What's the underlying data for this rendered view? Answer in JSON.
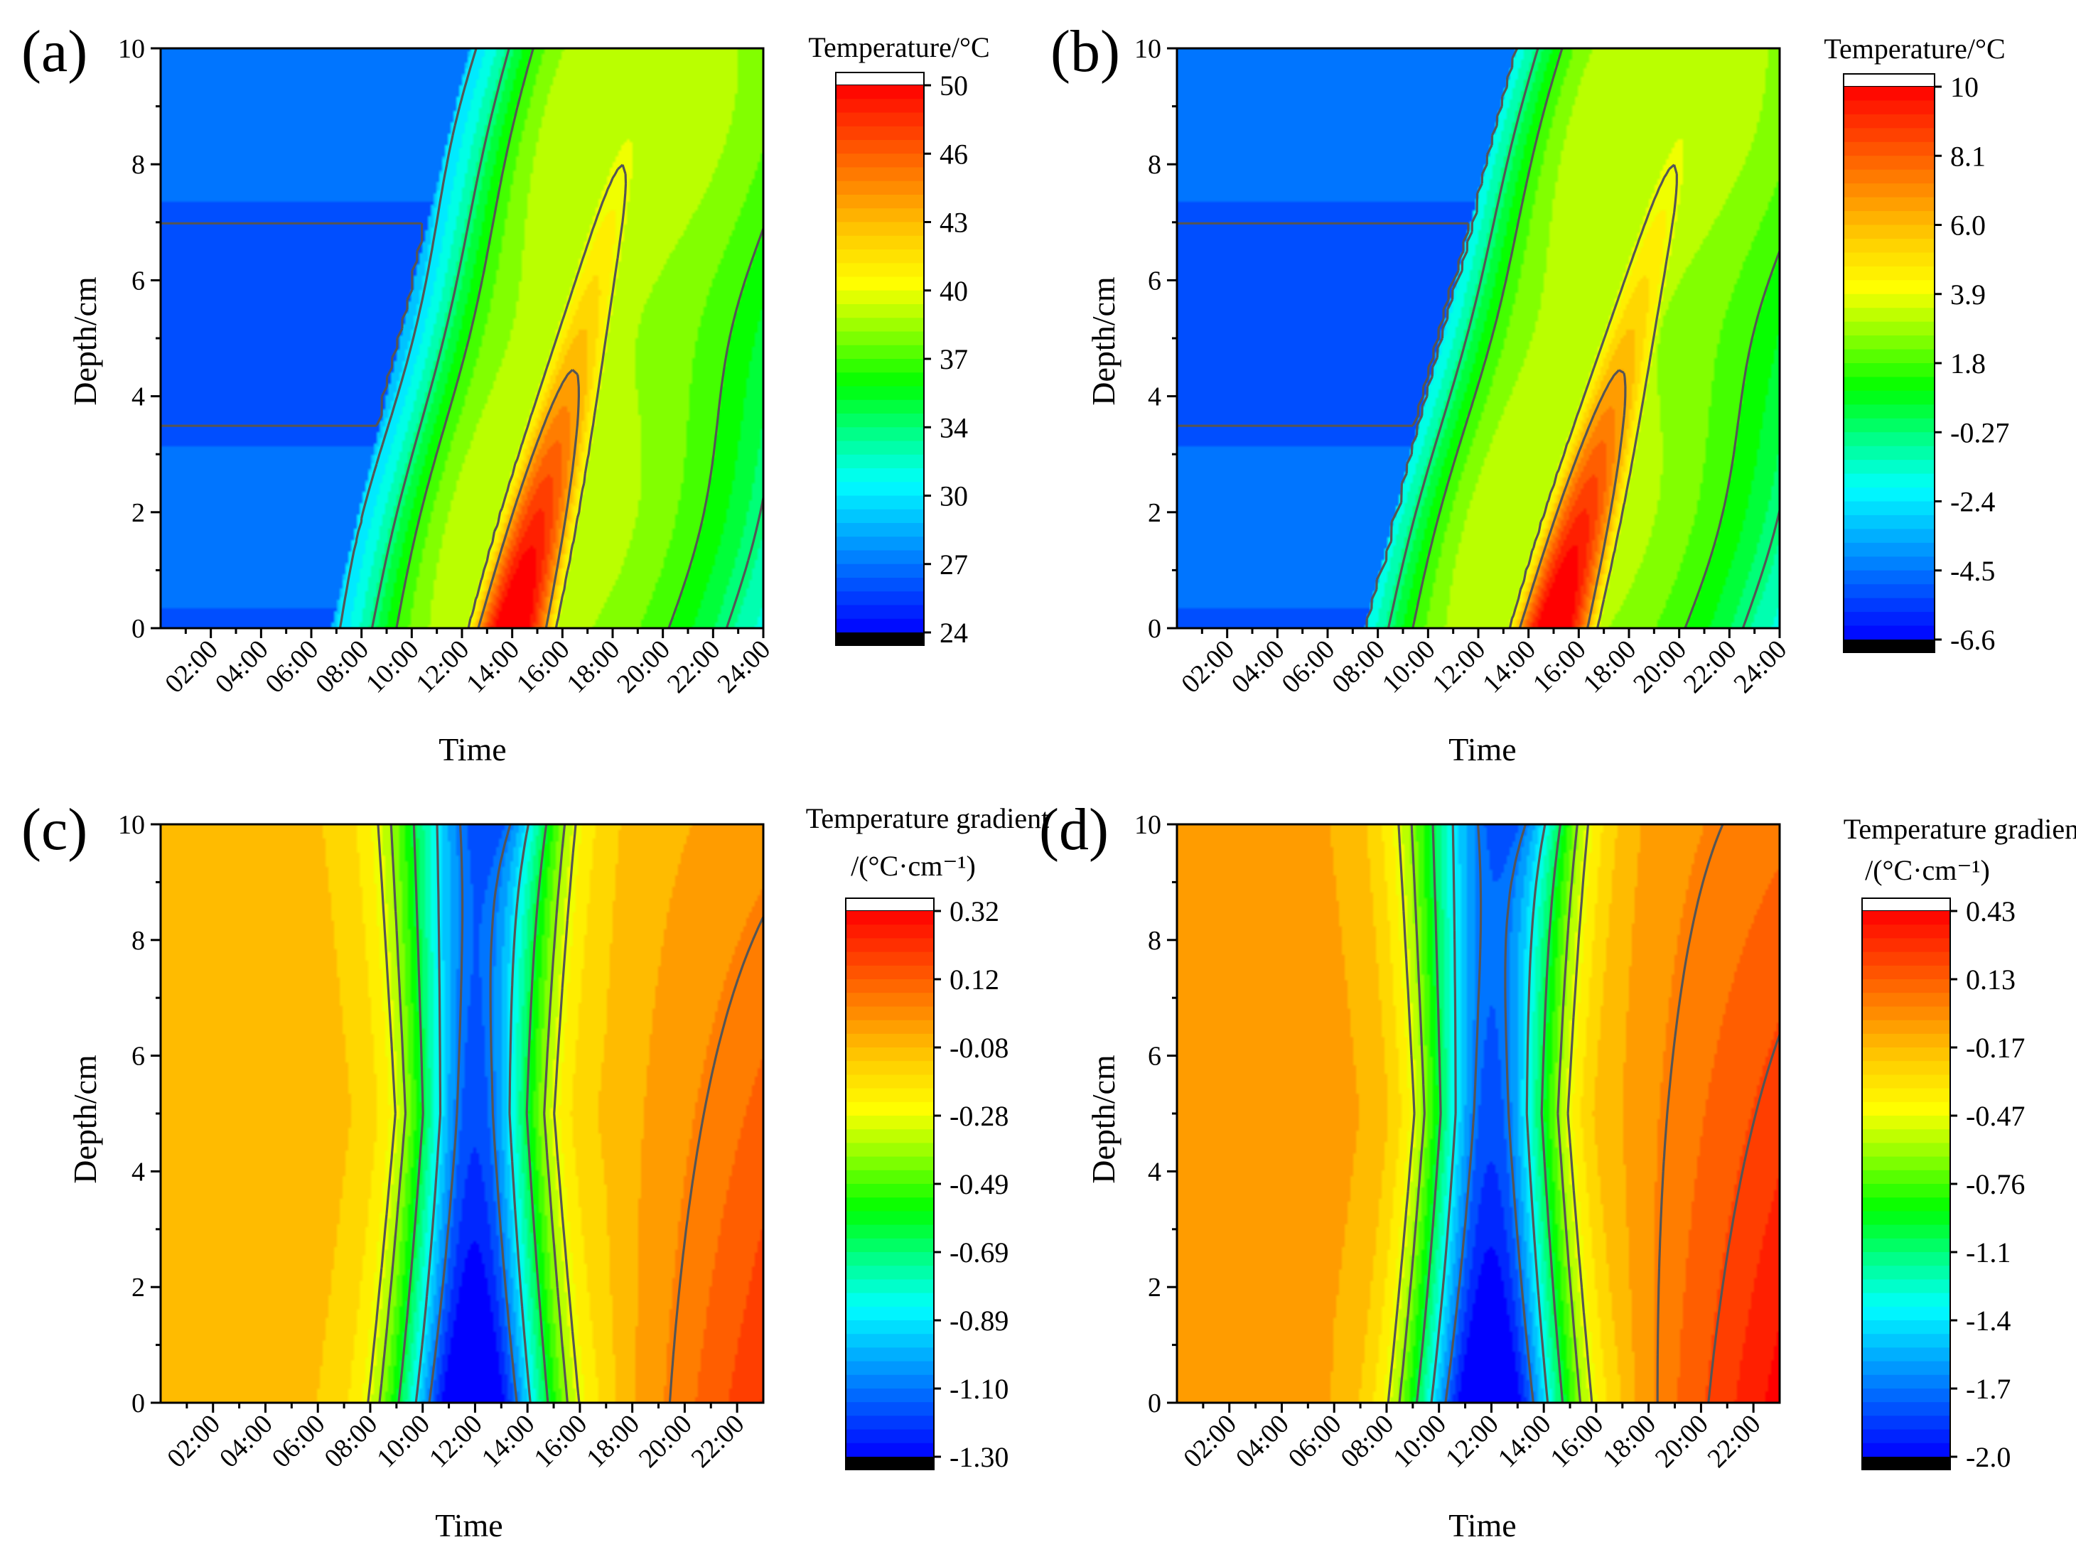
{
  "colors": {
    "colormap": [
      "#000000",
      "#0000ff",
      "#0055ff",
      "#00aaff",
      "#00ffff",
      "#00ff88",
      "#00ff00",
      "#88ff00",
      "#ffff00",
      "#ffcc00",
      "#ff8800",
      "#ff4400",
      "#ff0000",
      "#ffffff"
    ],
    "contour": "#555555"
  },
  "chart_data": [
    {
      "type": "heatmap",
      "panel": "(a)",
      "xlabel": "Time",
      "ylabel": "Depth/cm",
      "x_ticks": [
        "02:00",
        "04:00",
        "06:00",
        "08:00",
        "10:00",
        "12:00",
        "14:00",
        "16:00",
        "18:00",
        "20:00",
        "22:00",
        "24:00"
      ],
      "x_tick_hours": [
        2,
        4,
        6,
        8,
        10,
        12,
        14,
        16,
        18,
        20,
        22,
        24
      ],
      "xlim": [
        0,
        24
      ],
      "y_ticks": [
        "0",
        "2",
        "4",
        "6",
        "8",
        "10"
      ],
      "ylim": [
        0,
        10
      ],
      "colorbar": {
        "title": "Temperature/°C",
        "ticks": [
          "50",
          "46",
          "43",
          "40",
          "37",
          "34",
          "30",
          "27",
          "24"
        ],
        "range": [
          24,
          50
        ]
      },
      "field": {
        "base": 0.04,
        "amp": 1.03,
        "peak_hour": 14.0,
        "width_hours": 2.3,
        "skew": 0.013,
        "decay_depth": 13.5,
        "shift_per_cm": 0.55,
        "band_lo": 0.16,
        "band_hi": 0.6,
        "night_hours": [
          0,
          6.8
        ],
        "night_value": 0.1
      },
      "contour_levels": [
        0.1,
        0.24,
        0.37,
        0.48,
        0.62,
        0.77
      ]
    },
    {
      "type": "heatmap",
      "panel": "(b)",
      "xlabel": "Time",
      "ylabel": "Depth/cm",
      "x_ticks": [
        "02:00",
        "04:00",
        "06:00",
        "08:00",
        "10:00",
        "12:00",
        "14:00",
        "16:00",
        "18:00",
        "20:00",
        "22:00",
        "24:00"
      ],
      "x_tick_hours": [
        2,
        4,
        6,
        8,
        10,
        12,
        14,
        16,
        18,
        20,
        22,
        24
      ],
      "xlim": [
        0,
        24
      ],
      "y_ticks": [
        "0",
        "2",
        "4",
        "6",
        "8",
        "10"
      ],
      "ylim": [
        0,
        10
      ],
      "colorbar": {
        "title": "Temperature/°C",
        "ticks": [
          "10",
          "8.1",
          "6.0",
          "3.9",
          "1.8",
          "-0.27",
          "-2.4",
          "-4.5",
          "-6.6"
        ],
        "range": [
          -6.6,
          10
        ]
      },
      "field": {
        "base": 0.04,
        "amp": 1.03,
        "peak_hour": 15.0,
        "width_hours": 2.3,
        "skew": 0.013,
        "decay_depth": 13.5,
        "shift_per_cm": 0.6,
        "band_lo": 0.16,
        "band_hi": 0.6,
        "night_hours": [
          0,
          7.5
        ],
        "night_value": 0.1
      },
      "contour_levels": [
        0.1,
        0.24,
        0.37,
        0.48,
        0.62,
        0.77
      ]
    },
    {
      "type": "heatmap",
      "panel": "(c)",
      "xlabel": "Time",
      "ylabel": "Depth/cm",
      "x_ticks": [
        "02:00",
        "04:00",
        "06:00",
        "08:00",
        "10:00",
        "12:00",
        "14:00",
        "16:00",
        "18:00",
        "20:00",
        "22:00"
      ],
      "x_tick_hours": [
        2,
        4,
        6,
        8,
        10,
        12,
        14,
        16,
        18,
        20,
        22
      ],
      "xlim": [
        0,
        23
      ],
      "y_ticks": [
        "0",
        "2",
        "4",
        "6",
        "8",
        "10"
      ],
      "ylim": [
        0,
        10
      ],
      "colorbar": {
        "title_line1": "Temperature gradient",
        "title_line2": "/(°C·cm⁻¹)",
        "ticks": [
          "0.32",
          "0.12",
          "-0.08",
          "-0.28",
          "-0.49",
          "-0.69",
          "-0.89",
          "-1.10",
          "-1.30"
        ],
        "range": [
          -1.3,
          0.32
        ]
      },
      "field": {
        "base": 0.74,
        "dip_amp": 0.74,
        "dip_hour": 12.0,
        "dip_width": 2.3,
        "dip_decay": 6.0,
        "surface_hour": 11.5,
        "surface_width": 2.6,
        "evening_amp": 0.2,
        "evening_start": 17.0,
        "evening_end": 23.0
      },
      "contour_levels": [
        0.13,
        0.26,
        0.42,
        0.56,
        0.62,
        0.82
      ]
    },
    {
      "type": "heatmap",
      "panel": "(d)",
      "xlabel": "Time",
      "ylabel": "Depth/cm",
      "x_ticks": [
        "02:00",
        "04:00",
        "06:00",
        "08:00",
        "10:00",
        "12:00",
        "14:00",
        "16:00",
        "18:00",
        "20:00",
        "22:00"
      ],
      "x_tick_hours": [
        2,
        4,
        6,
        8,
        10,
        12,
        14,
        16,
        18,
        20,
        22
      ],
      "xlim": [
        0,
        23
      ],
      "y_ticks": [
        "0",
        "2",
        "4",
        "6",
        "8",
        "10"
      ],
      "ylim": [
        0,
        10
      ],
      "colorbar": {
        "title_line1": "Temperature gradient",
        "title_line2": "/(°C·cm⁻¹)",
        "ticks": [
          "0.43",
          "0.13",
          "-0.17",
          "-0.47",
          "-0.76",
          "-1.1",
          "-1.4",
          "-1.7",
          "-2.0"
        ],
        "range": [
          -2.0,
          0.43
        ]
      },
      "field": {
        "base": 0.78,
        "dip_amp": 0.78,
        "dip_hour": 12.0,
        "dip_width": 2.4,
        "dip_decay": 6.0,
        "surface_hour": 11.5,
        "surface_width": 2.6,
        "evening_amp": 0.22,
        "evening_start": 17.0,
        "evening_end": 23.0
      },
      "contour_levels": [
        0.13,
        0.27,
        0.41,
        0.55,
        0.62,
        0.82,
        0.9
      ]
    }
  ]
}
